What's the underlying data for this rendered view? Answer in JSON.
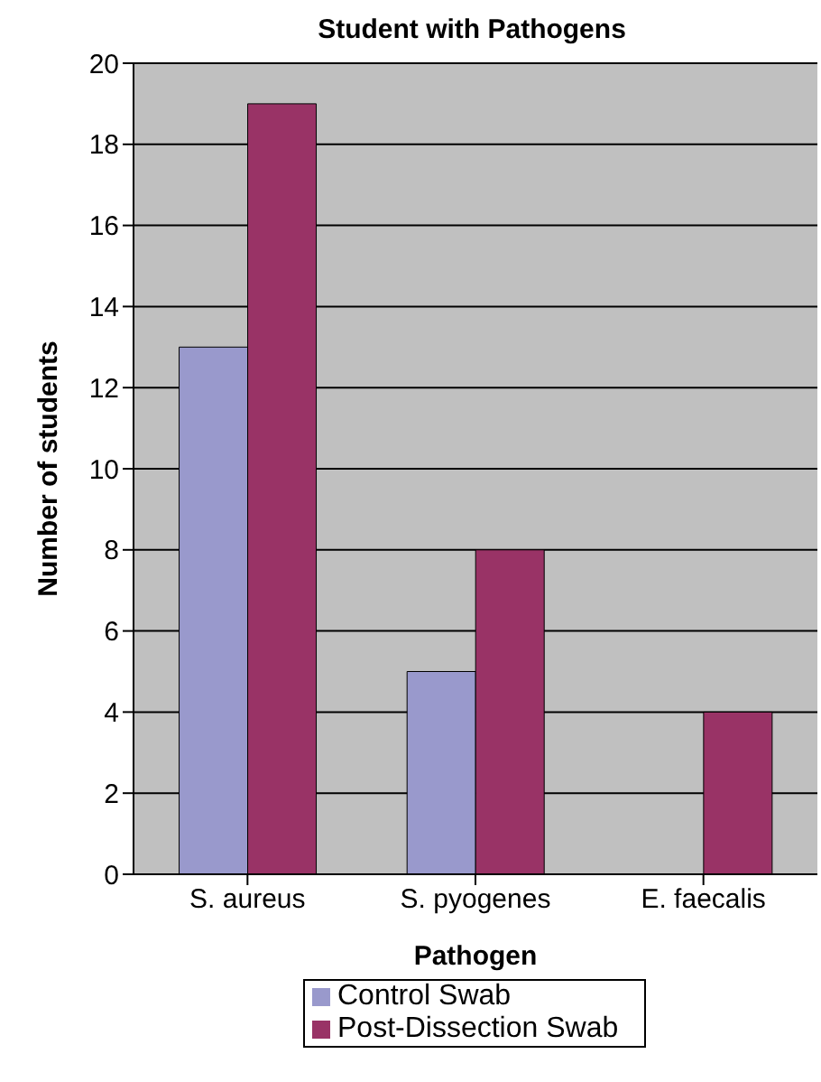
{
  "chart_data": {
    "type": "bar",
    "title": "Student with Pathogens",
    "xlabel": "Pathogen",
    "ylabel": "Number of students",
    "categories": [
      "S. aureus",
      "S. pyogenes",
      "E. faecalis"
    ],
    "series": [
      {
        "name": "Control Swab",
        "color": "#9999cc",
        "values": [
          13,
          5,
          0
        ]
      },
      {
        "name": "Post-Dissection Swab",
        "color": "#993366",
        "values": [
          19,
          8,
          4
        ]
      }
    ],
    "ylim": [
      0,
      20
    ],
    "yticks": [
      0,
      2,
      4,
      6,
      8,
      10,
      12,
      14,
      16,
      18,
      20
    ],
    "grid": "y",
    "legend": "bottom"
  }
}
